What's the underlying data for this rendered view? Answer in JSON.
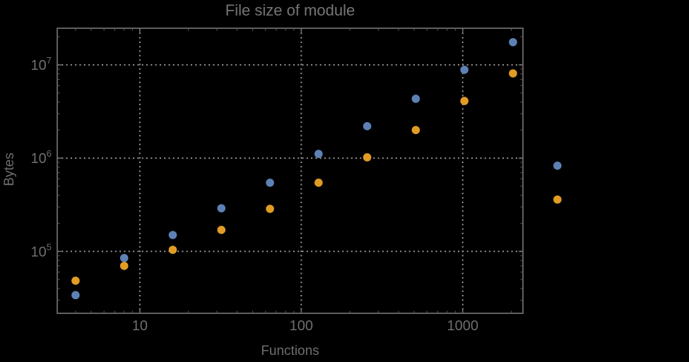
{
  "chart_data": {
    "type": "scatter",
    "title": "File size of module",
    "xlabel": "Functions",
    "ylabel": "Bytes",
    "x_scale": "log",
    "y_scale": "log",
    "x_range": [
      3.08,
      2360
    ],
    "y_range": [
      21700,
      24700000
    ],
    "grid": "dotted",
    "grid_at": "decades",
    "legend_position": "none",
    "clip_points_to_frame": false,
    "x": [
      4,
      8,
      16,
      32,
      64,
      128,
      256,
      512,
      1024,
      2048,
      3860
    ],
    "series": [
      {
        "name": "blue",
        "color": "#5e81b5",
        "values": [
          34000,
          85000,
          150000,
          290000,
          545000,
          1110000,
          2200000,
          4330000,
          8850000,
          17500000,
          830000
        ]
      },
      {
        "name": "orange",
        "color": "#e19c24",
        "values": [
          48500,
          70000,
          104000,
          170000,
          286000,
          545000,
          1020000,
          2000000,
          4100000,
          8100000,
          360000
        ]
      }
    ],
    "x_ticks": {
      "major": [
        10,
        100,
        1000
      ],
      "labels": [
        "10",
        "100",
        "1000"
      ]
    },
    "y_ticks": {
      "major": [
        100000,
        1000000,
        10000000
      ],
      "base": "10",
      "exponents": [
        "5",
        "6",
        "7"
      ]
    }
  },
  "colors": {
    "background": "#000000",
    "frame": "#606060",
    "grid": "#949494",
    "tick_text": "#6e6e6e",
    "title_text": "#757575",
    "series_blue": "#5e81b5",
    "series_orange": "#e19c24"
  }
}
